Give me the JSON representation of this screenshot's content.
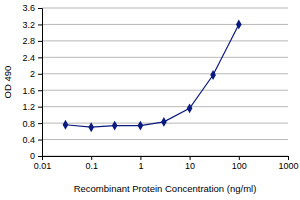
{
  "chart_data": {
    "type": "line",
    "x": [
      0.03,
      0.1,
      0.3,
      1,
      3,
      10,
      30,
      100
    ],
    "values": [
      0.76,
      0.7,
      0.74,
      0.74,
      0.83,
      1.16,
      1.97,
      3.2
    ],
    "xlim": [
      0.01,
      1000
    ],
    "xticks": [
      0.01,
      0.1,
      1,
      10,
      100,
      1000
    ],
    "ylim": [
      0,
      3.6
    ],
    "yticks": [
      0,
      0.4,
      0.8,
      1.2,
      1.6,
      2,
      2.4,
      2.8,
      3.2,
      3.6
    ],
    "log": "x",
    "grid": true,
    "color": "#0a1a80",
    "marker": "diamond",
    "x_label": "Recombinant Protein Concentration (ng/ml)",
    "y_label": "OD 490"
  }
}
